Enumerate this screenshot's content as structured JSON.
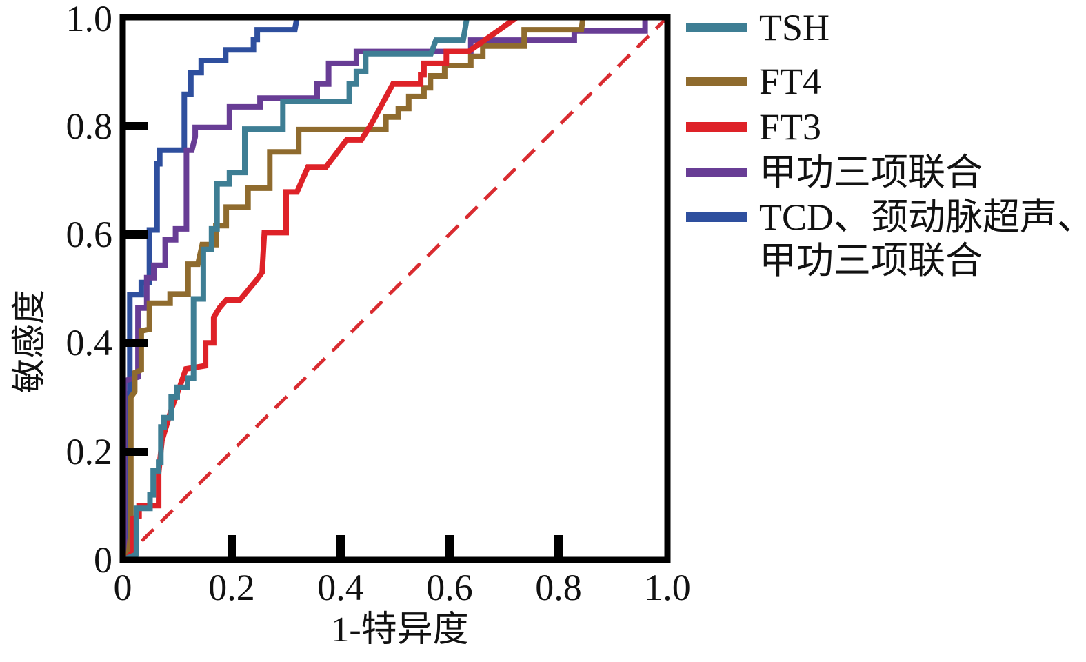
{
  "figure": {
    "x_axis_title": "1-特异度",
    "y_axis_title": "敏感度",
    "x_tick_labels": [
      "0",
      "0.2",
      "0.4",
      "0.6",
      "0.8",
      "1.0"
    ],
    "y_tick_labels": [
      "0",
      "0.2",
      "0.4",
      "0.6",
      "0.8",
      "1.0"
    ]
  },
  "legend": {
    "items": [
      {
        "label": "TSH",
        "color": "#3e7e94"
      },
      {
        "label": "FT4",
        "color": "#8f6b2e"
      },
      {
        "label": "FT3",
        "color": "#de2228"
      },
      {
        "label": "甲功三项联合",
        "color": "#683d95"
      },
      {
        "label_line1": "TCD、颈动脉超声、",
        "label_line2": "甲功三项联合",
        "color": "#2e4f9e"
      }
    ]
  },
  "chart_data": {
    "type": "line",
    "subtype": "roc-step-curves",
    "title": "",
    "xlabel": "1-特异度",
    "ylabel": "敏感度",
    "xlim": [
      0,
      1
    ],
    "ylim": [
      0,
      1
    ],
    "x_ticks": [
      0,
      0.2,
      0.4,
      0.6,
      0.8,
      1.0
    ],
    "y_ticks": [
      0,
      0.2,
      0.4,
      0.6,
      0.8,
      1.0
    ],
    "grid": false,
    "legend_position": "right-outside",
    "reference_line": {
      "name": "chance-diagonal",
      "style": "dashed",
      "color": "#d92b30",
      "from": [
        0,
        0
      ],
      "to": [
        1,
        1
      ]
    },
    "series": [
      {
        "name": "TSH",
        "color": "#3e7e94",
        "points": [
          [
            0,
            0
          ],
          [
            0.012,
            0.005
          ],
          [
            0.025,
            0.01
          ],
          [
            0.025,
            0.095
          ],
          [
            0.05,
            0.095
          ],
          [
            0.05,
            0.12
          ],
          [
            0.056,
            0.12
          ],
          [
            0.056,
            0.164
          ],
          [
            0.066,
            0.164
          ],
          [
            0.066,
            0.18
          ],
          [
            0.07,
            0.18
          ],
          [
            0.07,
            0.245
          ],
          [
            0.076,
            0.245
          ],
          [
            0.076,
            0.262
          ],
          [
            0.089,
            0.262
          ],
          [
            0.089,
            0.3
          ],
          [
            0.1,
            0.3
          ],
          [
            0.1,
            0.318
          ],
          [
            0.119,
            0.318
          ],
          [
            0.119,
            0.335
          ],
          [
            0.13,
            0.335
          ],
          [
            0.13,
            0.481
          ],
          [
            0.148,
            0.481
          ],
          [
            0.148,
            0.572
          ],
          [
            0.163,
            0.572
          ],
          [
            0.163,
            0.61
          ],
          [
            0.173,
            0.61
          ],
          [
            0.173,
            0.693
          ],
          [
            0.196,
            0.693
          ],
          [
            0.196,
            0.714
          ],
          [
            0.224,
            0.714
          ],
          [
            0.224,
            0.794
          ],
          [
            0.294,
            0.794
          ],
          [
            0.294,
            0.845
          ],
          [
            0.416,
            0.845
          ],
          [
            0.416,
            0.877
          ],
          [
            0.429,
            0.877
          ],
          [
            0.429,
            0.9
          ],
          [
            0.446,
            0.9
          ],
          [
            0.446,
            0.933
          ],
          [
            0.566,
            0.933
          ],
          [
            0.575,
            0.958
          ],
          [
            0.625,
            0.958
          ],
          [
            0.632,
            1.0
          ],
          [
            1,
            1
          ]
        ]
      },
      {
        "name": "FT4",
        "color": "#8f6b2e",
        "points": [
          [
            0,
            0
          ],
          [
            0.01,
            0.005
          ],
          [
            0.015,
            0.05
          ],
          [
            0.015,
            0.3
          ],
          [
            0.022,
            0.31
          ],
          [
            0.022,
            0.345
          ],
          [
            0.034,
            0.35
          ],
          [
            0.034,
            0.422
          ],
          [
            0.049,
            0.425
          ],
          [
            0.049,
            0.473
          ],
          [
            0.087,
            0.473
          ],
          [
            0.087,
            0.49
          ],
          [
            0.12,
            0.49
          ],
          [
            0.12,
            0.545
          ],
          [
            0.138,
            0.545
          ],
          [
            0.144,
            0.572
          ],
          [
            0.146,
            0.581
          ],
          [
            0.171,
            0.581
          ],
          [
            0.171,
            0.616
          ],
          [
            0.19,
            0.616
          ],
          [
            0.19,
            0.65
          ],
          [
            0.23,
            0.65
          ],
          [
            0.23,
            0.685
          ],
          [
            0.27,
            0.685
          ],
          [
            0.27,
            0.752
          ],
          [
            0.323,
            0.752
          ],
          [
            0.323,
            0.793
          ],
          [
            0.483,
            0.793
          ],
          [
            0.483,
            0.816
          ],
          [
            0.506,
            0.816
          ],
          [
            0.506,
            0.832
          ],
          [
            0.525,
            0.832
          ],
          [
            0.525,
            0.854
          ],
          [
            0.553,
            0.854
          ],
          [
            0.553,
            0.87
          ],
          [
            0.565,
            0.87
          ],
          [
            0.565,
            0.892
          ],
          [
            0.591,
            0.892
          ],
          [
            0.591,
            0.911
          ],
          [
            0.639,
            0.911
          ],
          [
            0.639,
            0.928
          ],
          [
            0.661,
            0.928
          ],
          [
            0.661,
            0.947
          ],
          [
            0.737,
            0.947
          ],
          [
            0.737,
            0.977
          ],
          [
            0.842,
            0.977
          ],
          [
            0.845,
            1.0
          ],
          [
            1,
            1
          ]
        ]
      },
      {
        "name": "FT3",
        "color": "#de2228",
        "points": [
          [
            0,
            0
          ],
          [
            0.01,
            0.005
          ],
          [
            0.019,
            0.015
          ],
          [
            0.019,
            0.076
          ],
          [
            0.03,
            0.08
          ],
          [
            0.03,
            0.1
          ],
          [
            0.066,
            0.1
          ],
          [
            0.066,
            0.16
          ],
          [
            0.072,
            0.22
          ],
          [
            0.09,
            0.28
          ],
          [
            0.105,
            0.32
          ],
          [
            0.116,
            0.352
          ],
          [
            0.152,
            0.358
          ],
          [
            0.152,
            0.4
          ],
          [
            0.167,
            0.4
          ],
          [
            0.167,
            0.447
          ],
          [
            0.178,
            0.465
          ],
          [
            0.19,
            0.479
          ],
          [
            0.215,
            0.479
          ],
          [
            0.245,
            0.515
          ],
          [
            0.256,
            0.53
          ],
          [
            0.26,
            0.603
          ],
          [
            0.3,
            0.603
          ],
          [
            0.3,
            0.678
          ],
          [
            0.32,
            0.678
          ],
          [
            0.34,
            0.724
          ],
          [
            0.373,
            0.724
          ],
          [
            0.411,
            0.774
          ],
          [
            0.438,
            0.774
          ],
          [
            0.458,
            0.806
          ],
          [
            0.496,
            0.877
          ],
          [
            0.547,
            0.877
          ],
          [
            0.547,
            0.894
          ],
          [
            0.553,
            0.894
          ],
          [
            0.553,
            0.915
          ],
          [
            0.594,
            0.915
          ],
          [
            0.594,
            0.937
          ],
          [
            0.635,
            0.937
          ],
          [
            0.724,
            1.0
          ],
          [
            1,
            1
          ]
        ]
      },
      {
        "name": "甲功三项联合",
        "color": "#683d95",
        "points": [
          [
            0,
            0
          ],
          [
            0.003,
            0.005
          ],
          [
            0.003,
            0.33
          ],
          [
            0.028,
            0.337
          ],
          [
            0.028,
            0.464
          ],
          [
            0.044,
            0.464
          ],
          [
            0.044,
            0.52
          ],
          [
            0.057,
            0.52
          ],
          [
            0.057,
            0.543
          ],
          [
            0.078,
            0.543
          ],
          [
            0.078,
            0.59
          ],
          [
            0.097,
            0.59
          ],
          [
            0.097,
            0.61
          ],
          [
            0.117,
            0.61
          ],
          [
            0.117,
            0.755
          ],
          [
            0.127,
            0.755
          ],
          [
            0.133,
            0.78
          ],
          [
            0.133,
            0.797
          ],
          [
            0.196,
            0.797
          ],
          [
            0.196,
            0.835
          ],
          [
            0.252,
            0.835
          ],
          [
            0.252,
            0.851
          ],
          [
            0.357,
            0.851
          ],
          [
            0.357,
            0.877
          ],
          [
            0.378,
            0.877
          ],
          [
            0.378,
            0.915
          ],
          [
            0.429,
            0.915
          ],
          [
            0.429,
            0.937
          ],
          [
            0.639,
            0.937
          ],
          [
            0.639,
            0.958
          ],
          [
            0.829,
            0.958
          ],
          [
            0.829,
            0.975
          ],
          [
            0.959,
            0.975
          ],
          [
            0.959,
            1.0
          ],
          [
            1,
            1
          ]
        ]
      },
      {
        "name": "TCD、颈动脉超声、甲功三项联合",
        "color": "#2e4f9e",
        "points": [
          [
            0,
            0
          ],
          [
            0.007,
            0.01
          ],
          [
            0.007,
            0.3
          ],
          [
            0.013,
            0.31
          ],
          [
            0.013,
            0.489
          ],
          [
            0.034,
            0.489
          ],
          [
            0.034,
            0.511
          ],
          [
            0.049,
            0.511
          ],
          [
            0.049,
            0.608
          ],
          [
            0.063,
            0.608
          ],
          [
            0.063,
            0.73
          ],
          [
            0.068,
            0.73
          ],
          [
            0.068,
            0.755
          ],
          [
            0.113,
            0.755
          ],
          [
            0.113,
            0.858
          ],
          [
            0.125,
            0.858
          ],
          [
            0.125,
            0.898
          ],
          [
            0.144,
            0.898
          ],
          [
            0.144,
            0.92
          ],
          [
            0.189,
            0.92
          ],
          [
            0.189,
            0.94
          ],
          [
            0.24,
            0.94
          ],
          [
            0.24,
            0.959
          ],
          [
            0.247,
            0.959
          ],
          [
            0.247,
            0.977
          ],
          [
            0.316,
            0.977
          ],
          [
            0.32,
            1.0
          ],
          [
            1,
            1
          ]
        ]
      }
    ]
  }
}
